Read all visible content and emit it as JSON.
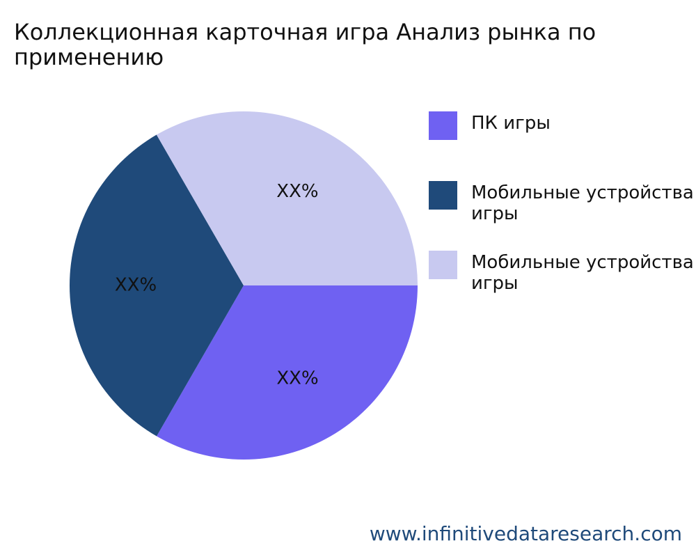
{
  "chart_data": {
    "type": "pie",
    "title": "Коллекционная карточная игра Анализ рынка по применению",
    "categories": [
      "ПК игры",
      "Мобильные устройства игры",
      "Мобильные устройства игры"
    ],
    "values": [
      33.33,
      33.33,
      33.34
    ],
    "value_labels": [
      "XX%",
      "XX%",
      "XX%"
    ],
    "colors": [
      "#6f61f2",
      "#1f4a7a",
      "#c8c9f0"
    ],
    "direction": "clockwise",
    "legend": "right",
    "watermark": "www.infinitivedataresearch.com"
  }
}
